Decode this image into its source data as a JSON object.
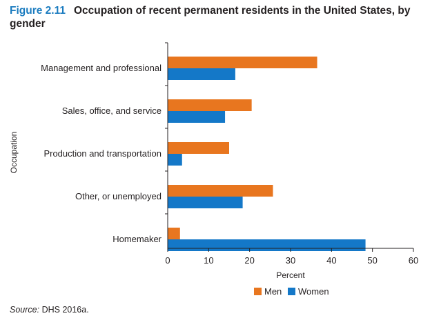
{
  "figure": {
    "number": "Figure 2.11",
    "title": "Occupation of recent permanent residents in the United States, by gender"
  },
  "source": {
    "label": "Source:",
    "text": "DHS 2016a."
  },
  "colors": {
    "men": "#e8761f",
    "women": "#1478c8"
  },
  "chart_data": {
    "type": "bar",
    "orientation": "horizontal",
    "categories": [
      "Management and professional",
      "Sales, office, and service",
      "Production and transportation",
      "Other, or unemployed",
      "Homemaker"
    ],
    "series": [
      {
        "name": "Men",
        "values": [
          36.5,
          20.5,
          15,
          25.7,
          3
        ]
      },
      {
        "name": "Women",
        "values": [
          16.5,
          14,
          3.5,
          18.3,
          48.3
        ]
      }
    ],
    "xlabel": "Percent",
    "ylabel": "Occupation",
    "xlim": [
      0,
      60
    ],
    "xticks": [
      0,
      10,
      20,
      30,
      40,
      50,
      60
    ],
    "grid": false,
    "legend_position": "bottom"
  }
}
